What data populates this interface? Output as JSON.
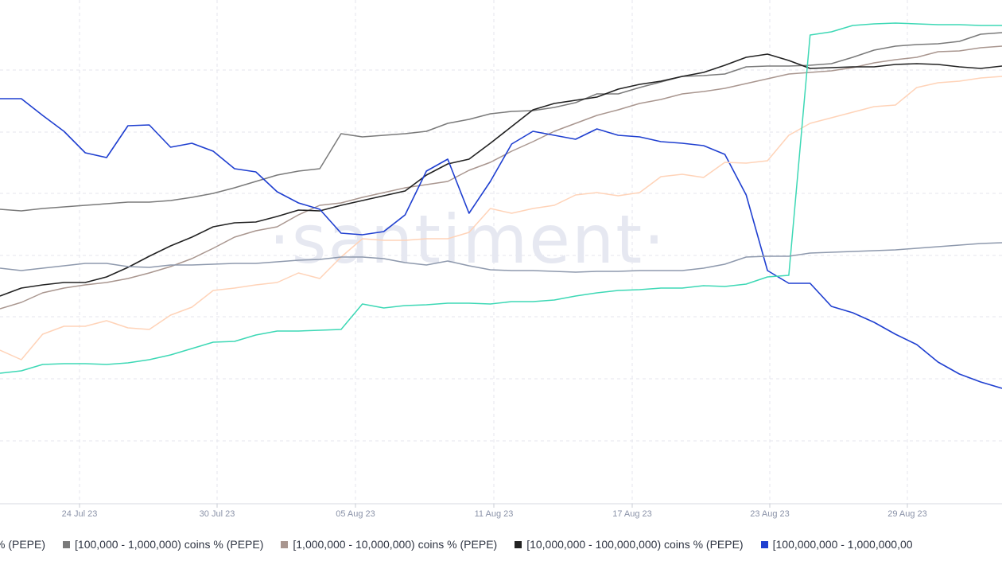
{
  "watermark": "·santiment·",
  "legend": [
    {
      "label": "% (PEPE)",
      "color": "#ffffff",
      "swatch": false
    },
    {
      "label": "[100,000 - 1,000,000) coins % (PEPE)",
      "color": "#7a7a7a",
      "swatch": true
    },
    {
      "label": "[1,000,000 - 10,000,000) coins % (PEPE)",
      "color": "#a9968f",
      "swatch": true
    },
    {
      "label": "[10,000,000 - 100,000,000) coins % (PEPE)",
      "color": "#222222",
      "swatch": true
    },
    {
      "label": "[100,000,000 - 1,000,000,00",
      "color": "#1f3fd0",
      "swatch": true
    }
  ],
  "chart_data": {
    "type": "line",
    "title": "",
    "xlabel": "",
    "ylabel": "",
    "grid": true,
    "legend_position": "bottom",
    "x_tick_labels": [
      "24 Jul 23",
      "30 Jul 23",
      "05 Aug 23",
      "11 Aug 23",
      "17 Aug 23",
      "23 Aug 23",
      "29 Aug 23"
    ],
    "x_start": "2023-07-21",
    "x_end": "2023-09-01",
    "series": [
      {
        "name": "[100,000 - 1,000,000) coins % (PEPE)",
        "color": "#7a7a7a",
        "values": [
          263,
          265,
          262,
          260,
          258,
          256,
          254,
          254,
          252,
          248,
          243,
          236,
          228,
          220,
          215,
          212,
          168,
          172,
          170,
          168,
          165,
          155,
          150,
          143,
          140,
          139,
          135,
          129,
          118,
          118,
          110,
          103,
          96,
          95,
          93,
          84,
          83,
          83,
          82,
          80,
          72,
          63,
          58,
          56,
          55,
          52,
          43,
          41
        ]
      },
      {
        "name": "[1,000,000 - 10,000,000) coins % (PEPE)",
        "color": "#a9968f",
        "values": [
          388,
          380,
          368,
          362,
          358,
          355,
          350,
          343,
          335,
          325,
          312,
          298,
          290,
          285,
          270,
          258,
          255,
          248,
          242,
          236,
          232,
          228,
          214,
          204,
          190,
          178,
          165,
          155,
          145,
          138,
          130,
          125,
          118,
          115,
          111,
          105,
          99,
          93,
          91,
          89,
          85,
          79,
          75,
          72,
          65,
          64,
          60,
          58
        ]
      },
      {
        "name": "[10,000,000 - 100,000,000) coins % (PEPE)",
        "color": "#222222",
        "values": [
          372,
          362,
          358,
          355,
          355,
          348,
          336,
          322,
          309,
          298,
          285,
          280,
          279,
          272,
          264,
          265,
          258,
          252,
          246,
          240,
          220,
          206,
          200,
          180,
          159,
          138,
          130,
          126,
          122,
          112,
          106,
          102,
          96,
          91,
          82,
          72,
          68,
          76,
          86,
          85,
          84,
          84,
          81,
          80,
          81,
          84,
          86,
          83
        ]
      },
      {
        "name": "[100,000,000 - 1,000,000,00",
        "color": "#1f3fd0",
        "values": [
          124,
          124,
          145,
          165,
          192,
          198,
          158,
          157,
          185,
          180,
          190,
          212,
          216,
          241,
          255,
          263,
          293,
          295,
          291,
          270,
          215,
          200,
          268,
          228,
          181,
          165,
          170,
          175,
          162,
          170,
          172,
          178,
          180,
          183,
          194,
          245,
          340,
          356,
          356,
          385,
          393,
          405,
          420,
          433,
          455,
          470,
          480,
          488
        ]
      },
      {
        "name": "",
        "color": "#ffd3b8",
        "values": [
          440,
          452,
          420,
          410,
          410,
          403,
          412,
          414,
          396,
          386,
          365,
          362,
          358,
          355,
          343,
          350,
          323,
          300,
          302,
          302,
          300,
          300,
          292,
          262,
          268,
          262,
          258,
          245,
          242,
          246,
          242,
          222,
          219,
          223,
          204,
          205,
          202,
          170,
          155,
          148,
          141,
          134,
          132,
          110,
          104,
          102,
          98,
          96
        ]
      },
      {
        "name": "",
        "color": "#3dd8b5",
        "values": [
          469,
          466,
          458,
          457,
          457,
          458,
          456,
          452,
          446,
          438,
          430,
          429,
          421,
          416,
          416,
          415,
          414,
          382,
          387,
          384,
          383,
          381,
          381,
          382,
          379,
          379,
          377,
          372,
          368,
          365,
          364,
          362,
          362,
          359,
          360,
          357,
          348,
          346,
          44,
          40,
          32,
          30,
          29,
          30,
          31,
          31,
          32,
          32
        ]
      },
      {
        "name": "",
        "color": "#8e99ad",
        "values": [
          337,
          340,
          337,
          334,
          331,
          331,
          335,
          336,
          333,
          333,
          332,
          331,
          331,
          329,
          327,
          326,
          323,
          323,
          325,
          330,
          333,
          328,
          334,
          339,
          340,
          340,
          341,
          342,
          341,
          341,
          340,
          340,
          340,
          337,
          332,
          323,
          322,
          322,
          318,
          317,
          316,
          315,
          314,
          312,
          310,
          308,
          306,
          305
        ]
      }
    ]
  }
}
